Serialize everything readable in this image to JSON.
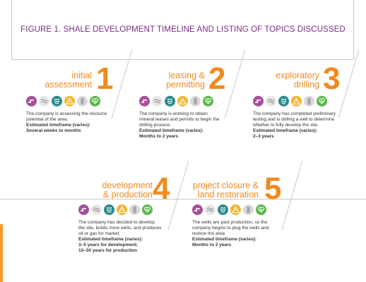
{
  "title": "FIGURE 1. SHALE DEVELOPMENT TIMELINE AND LISTING OF TOPICS DISCUSSED",
  "colors": {
    "title": "#7b2d86",
    "accent": "#f18a1f",
    "rule": "#c9c9c9",
    "icons": {
      "purple": "#a74f9c",
      "light": "#e6e6e6",
      "teal": "#2a8a8c",
      "yellow": "#f2b632",
      "grey": "#d9d9d9",
      "green": "#57b847"
    }
  },
  "stages": [
    {
      "number": "1",
      "label": "initial\nassessment",
      "description": "The company is assessing the resource potential of the area.",
      "estimate_label": "Estimated timeframe (varies):",
      "estimate_value": "Several weeks to months",
      "icons": [
        "pipeline-icon",
        "air-icon",
        "water-drops-icon",
        "warning-icon",
        "pump-icon",
        "heart-icon"
      ]
    },
    {
      "number": "2",
      "label": "leasing &\npermitting",
      "description": "The company is working to obtain mineral leases and permits to begin the drilling process.",
      "estimate_label": "Estimated timeframe (varies):",
      "estimate_value": "Months to 2 years",
      "icons": [
        "pipeline-icon",
        "air-icon",
        "water-drops-icon",
        "warning-icon",
        "pump-icon",
        "heart-icon"
      ]
    },
    {
      "number": "3",
      "label": "exploratory\ndrilling",
      "description": "The company has completed preliminary testing and is drilling a well to determine whether to fully develop the site.",
      "estimate_label": "Estimated timeframe (varies):",
      "estimate_value": "2–3 years",
      "icons": [
        "pipeline-icon",
        "air-icon",
        "water-drops-icon",
        "warning-icon",
        "pump-icon",
        "heart-icon"
      ]
    },
    {
      "number": "4",
      "label": "development\n& production",
      "description": "The company has decided to develop the site, builds more wells, and produces oil or gas for market.",
      "estimate_label": "Estimated timeframe (varies):",
      "estimate_value": "3–5 years for development;\n10–50 years for production",
      "icons": [
        "pipeline-icon",
        "air-icon",
        "water-drops-icon",
        "warning-icon",
        "pump-icon",
        "heart-icon"
      ]
    },
    {
      "number": "5",
      "label": "project closure &\nland restoration",
      "description": "The wells are past production, so the company begins to plug the wells and restore the area.",
      "estimate_label": "Estimated timeframe (varies):",
      "estimate_value": "Months to 2 years",
      "icons": [
        "pipeline-icon",
        "air-icon",
        "water-drops-icon",
        "warning-icon",
        "pump-icon",
        "heart-icon"
      ]
    }
  ]
}
